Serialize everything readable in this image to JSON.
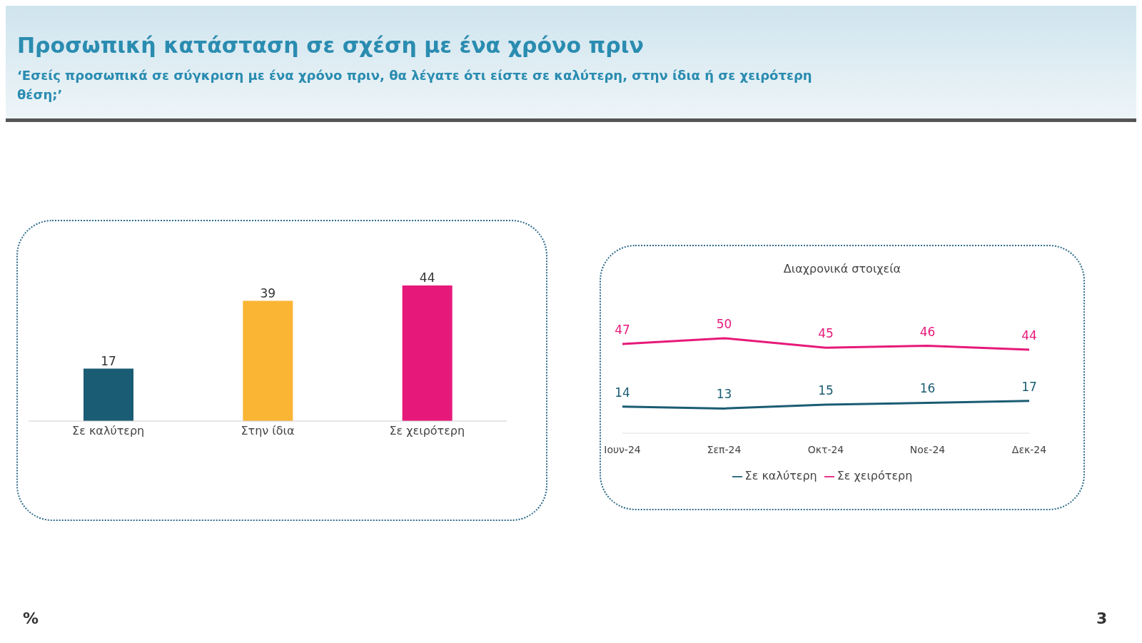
{
  "chart_data": [
    {
      "type": "bar",
      "title": "Προσωπική κατάσταση σε σχέση με ένα χρόνο πριν",
      "subtitle": "‘Εσείς προσωπικά σε σύγκριση με ένα χρόνο πριν, θα λέγατε ότι είστε σε καλύτερη, στην ίδια ή σε χειρότερη θέση;’",
      "categories": [
        "Σε καλύτερη",
        "Στην ίδια",
        "Σε χειρότερη"
      ],
      "values": [
        17,
        39,
        44
      ],
      "colors": [
        "#1a5c73",
        "#fbb534",
        "#e6197a"
      ],
      "data_labels": true,
      "annotations": [
        "%",
        "3"
      ]
    },
    {
      "type": "line",
      "title": "Διαχρονικά στοιχεία",
      "categories": [
        "Ιουν-24",
        "Σεπ-24",
        "Οκτ-24",
        "Νοε-24",
        "Δεκ-24"
      ],
      "series": [
        {
          "name": "Σε καλύτερη",
          "color": "#1a5c73",
          "values": [
            14,
            13,
            15,
            16,
            17
          ]
        },
        {
          "name": "Σε χειρότερη",
          "color": "#e6197a",
          "values": [
            47,
            50,
            45,
            46,
            44
          ]
        }
      ],
      "data_labels": true,
      "legend": "bottom"
    }
  ]
}
